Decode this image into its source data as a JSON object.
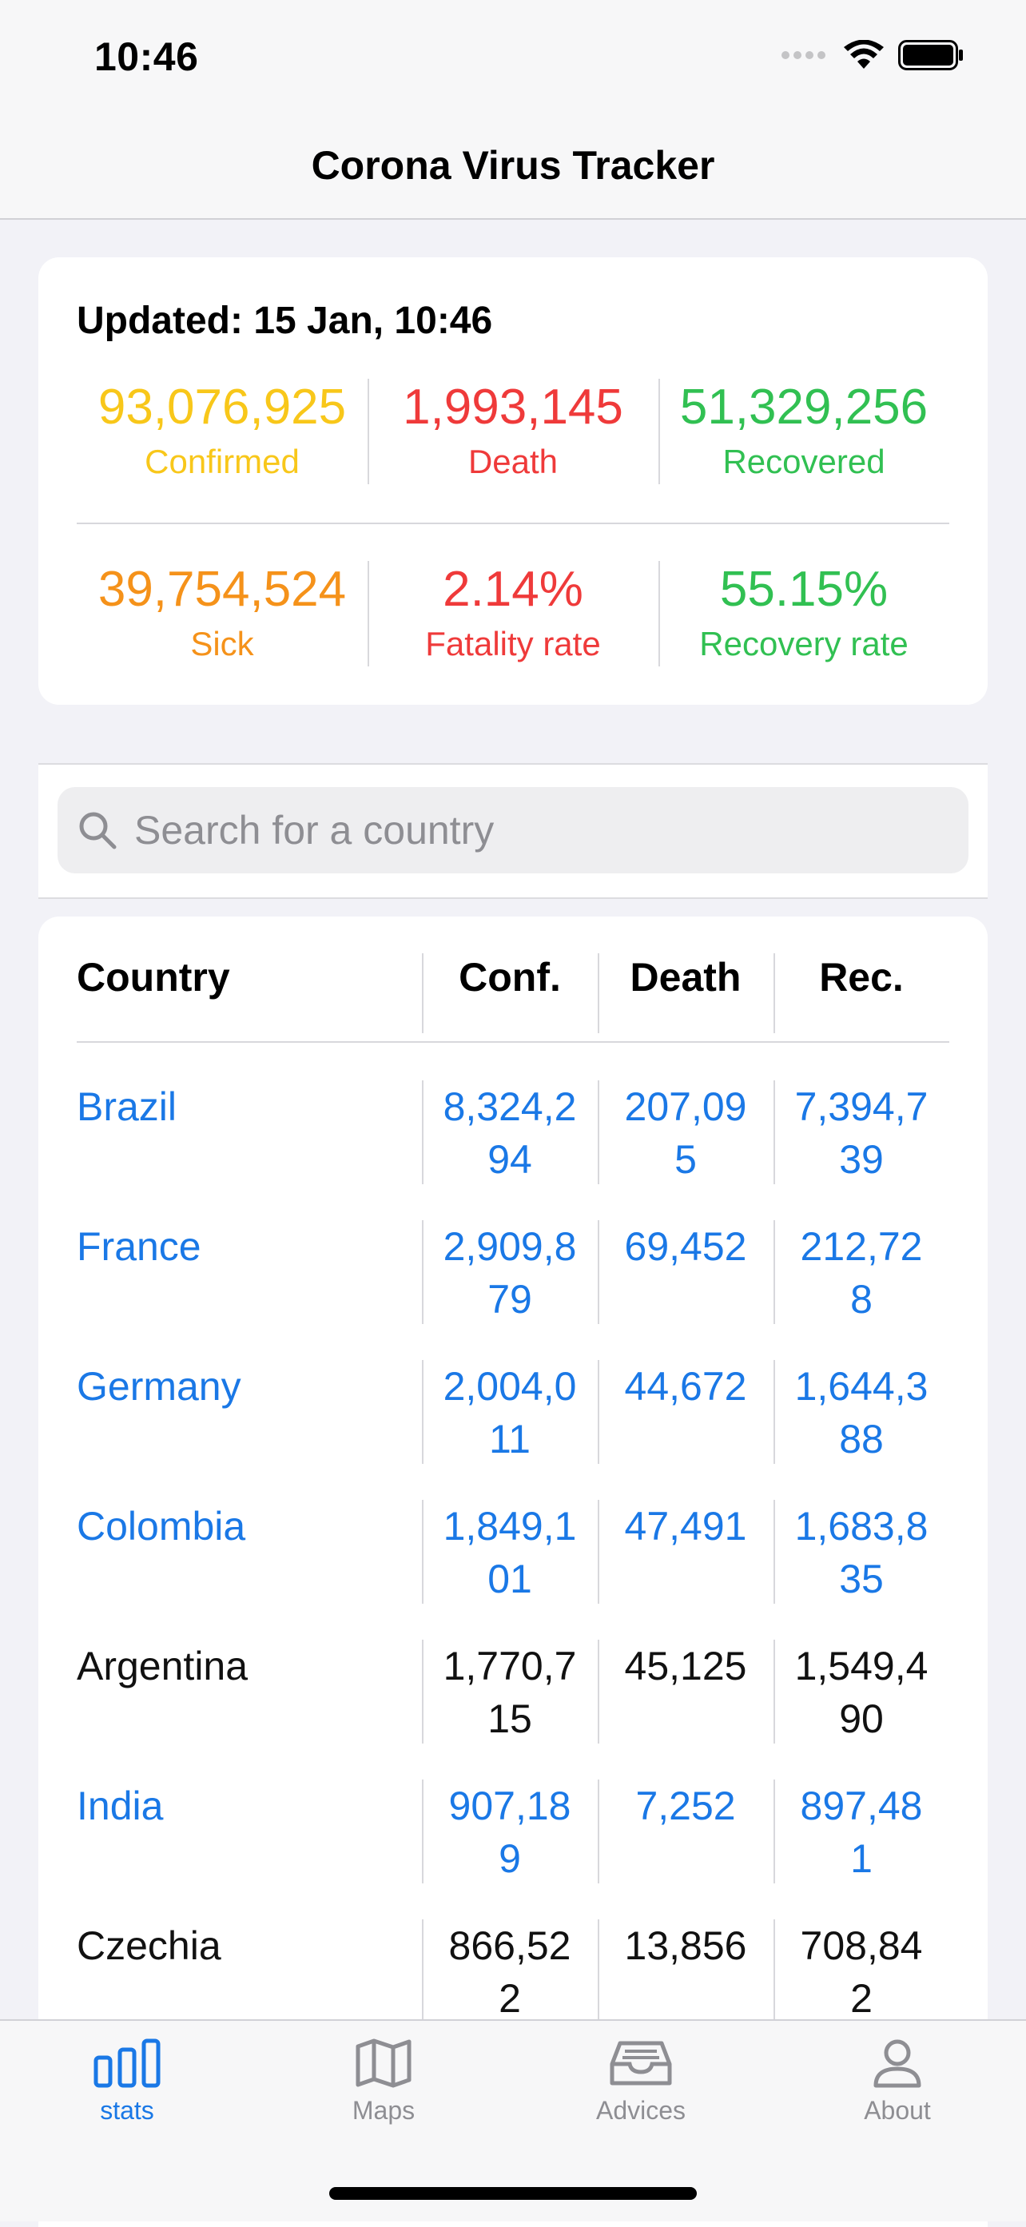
{
  "status_bar": {
    "time": "10:46"
  },
  "nav": {
    "title": "Corona Virus Tracker"
  },
  "summary": {
    "updated": "Updated: 15 Jan, 10:46",
    "confirmed": {
      "value": "93,076,925",
      "label": "Confirmed",
      "color": "#f8c71a"
    },
    "death": {
      "value": "1,993,145",
      "label": "Death",
      "color": "#ef3a3a"
    },
    "recovered": {
      "value": "51,329,256",
      "label": "Recovered",
      "color": "#31c052"
    },
    "sick": {
      "value": "39,754,524",
      "label": "Sick",
      "color": "#f5921a"
    },
    "fatality_rate": {
      "value": "2.14%",
      "label": "Fatality rate",
      "color": "#ef3a3a"
    },
    "recovery_rate": {
      "value": "55.15%",
      "label": "Recovery rate",
      "color": "#31c052"
    }
  },
  "search": {
    "placeholder": "Search for a country"
  },
  "table": {
    "headers": {
      "country": "Country",
      "confirmed": "Conf.",
      "death": "Death",
      "recovered": "Rec."
    },
    "rows": [
      {
        "country": "Brazil",
        "confirmed": "8,324,294",
        "death": "207,095",
        "recovered": "7,394,739",
        "link": true
      },
      {
        "country": "France",
        "confirmed": "2,909,879",
        "death": "69,452",
        "recovered": "212,728",
        "link": true
      },
      {
        "country": "Germany",
        "confirmed": "2,004,011",
        "death": "44,672",
        "recovered": "1,644,388",
        "link": true
      },
      {
        "country": "Colombia",
        "confirmed": "1,849,101",
        "death": "47,491",
        "recovered": "1,683,835",
        "link": true
      },
      {
        "country": "Argentina",
        "confirmed": "1,770,715",
        "death": "45,125",
        "recovered": "1,549,490",
        "link": false
      },
      {
        "country": "India",
        "confirmed": "907,189",
        "death": "7,252",
        "recovered": "897,481",
        "link": true
      },
      {
        "country": "Czechia",
        "confirmed": "866,522",
        "death": "13,856",
        "recovered": "708,842",
        "link": false
      }
    ]
  },
  "tabs": [
    {
      "label": "stats",
      "icon": "bar-chart-icon",
      "active": true
    },
    {
      "label": "Maps",
      "icon": "map-icon",
      "active": false
    },
    {
      "label": "Advices",
      "icon": "tray-icon",
      "active": false
    },
    {
      "label": "About",
      "icon": "person-icon",
      "active": false
    }
  ],
  "colors": {
    "accent": "#1a78e6",
    "background": "#f2f2f7"
  }
}
